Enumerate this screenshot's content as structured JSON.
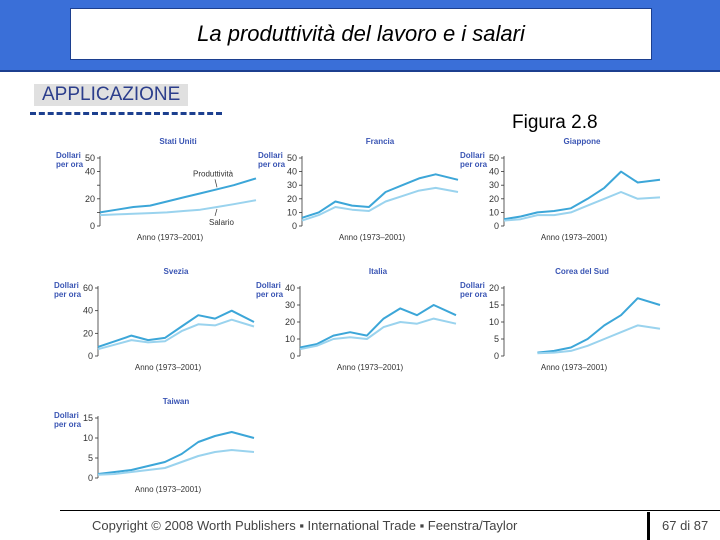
{
  "title": "La produttività del lavoro e i salari",
  "section_label": "APPLICAZIONE",
  "figure_label": "Figura 2.8",
  "colors": {
    "productivity": "#3ca6d8",
    "wages": "#9ad3ee",
    "accent": "#3a6fd8",
    "heading": "#3a55b4"
  },
  "chart_data": [
    {
      "type": "line",
      "title": "Stati Uniti",
      "ylabel": "Dollari per ora",
      "xlabel": "Anno (1973–2001)",
      "ylim": [
        0,
        50
      ],
      "yticks": [
        0,
        10,
        20,
        30,
        40,
        50
      ],
      "ytick_labels": [
        "0",
        "",
        "20",
        "",
        "40",
        "50"
      ],
      "x": [
        1973,
        1976,
        1979,
        1982,
        1985,
        1988,
        1991,
        1994,
        1997,
        2001
      ],
      "annotations": [
        "Produttività",
        "Salario"
      ],
      "series": [
        {
          "name": "Produttività",
          "values": [
            10,
            12,
            14,
            15,
            18,
            21,
            24,
            27,
            30,
            35
          ]
        },
        {
          "name": "Salario",
          "values": [
            8,
            8.5,
            9,
            9.5,
            10,
            11,
            12,
            14,
            16,
            19
          ]
        }
      ]
    },
    {
      "type": "line",
      "title": "Francia",
      "ylabel": "Dollari per ora",
      "xlabel": "Anno (1973–2001)",
      "ylim": [
        0,
        50
      ],
      "yticks": [
        0,
        10,
        20,
        30,
        40,
        50
      ],
      "ytick_labels": [
        "0",
        "10",
        "20",
        "30",
        "40",
        "50"
      ],
      "x": [
        1973,
        1976,
        1979,
        1982,
        1985,
        1988,
        1991,
        1994,
        1997,
        2001
      ],
      "series": [
        {
          "name": "Produttività",
          "values": [
            6,
            10,
            18,
            15,
            14,
            25,
            30,
            35,
            38,
            34
          ]
        },
        {
          "name": "Salario",
          "values": [
            4,
            8,
            14,
            12,
            11,
            18,
            22,
            26,
            28,
            25
          ]
        }
      ]
    },
    {
      "type": "line",
      "title": "Giappone",
      "ylabel": "Dollari per ora",
      "xlabel": "Anno (1973–2001)",
      "ylim": [
        0,
        50
      ],
      "yticks": [
        0,
        10,
        20,
        30,
        40,
        50
      ],
      "ytick_labels": [
        "0",
        "10",
        "20",
        "30",
        "40",
        "50"
      ],
      "x": [
        1973,
        1976,
        1979,
        1982,
        1985,
        1988,
        1991,
        1994,
        1997,
        2001
      ],
      "series": [
        {
          "name": "Produttività",
          "values": [
            5,
            7,
            10,
            11,
            13,
            20,
            28,
            40,
            32,
            34
          ]
        },
        {
          "name": "Salario",
          "values": [
            4,
            5,
            8,
            8,
            10,
            15,
            20,
            25,
            20,
            21
          ]
        }
      ]
    },
    {
      "type": "line",
      "title": "Svezia",
      "ylabel": "Dollari per ora",
      "xlabel": "Anno (1973–2001)",
      "ylim": [
        0,
        60
      ],
      "yticks": [
        0,
        20,
        40,
        60
      ],
      "ytick_labels": [
        "0",
        "20",
        "40",
        "60"
      ],
      "x": [
        1973,
        1976,
        1979,
        1982,
        1985,
        1988,
        1991,
        1994,
        1997,
        2001
      ],
      "series": [
        {
          "name": "Produttività",
          "values": [
            8,
            13,
            18,
            14,
            16,
            26,
            36,
            33,
            40,
            30
          ]
        },
        {
          "name": "Salario",
          "values": [
            6,
            10,
            14,
            12,
            13,
            22,
            28,
            27,
            32,
            26
          ]
        }
      ]
    },
    {
      "type": "line",
      "title": "Italia",
      "ylabel": "Dollari per ora",
      "xlabel": "Anno (1973–2001)",
      "ylim": [
        0,
        40
      ],
      "yticks": [
        0,
        10,
        20,
        30,
        40
      ],
      "ytick_labels": [
        "0",
        "10",
        "20",
        "30",
        "40"
      ],
      "x": [
        1973,
        1976,
        1979,
        1982,
        1985,
        1988,
        1991,
        1994,
        1997,
        2001
      ],
      "series": [
        {
          "name": "Produttività",
          "values": [
            5,
            7,
            12,
            14,
            12,
            22,
            28,
            24,
            30,
            24
          ]
        },
        {
          "name": "Salario",
          "values": [
            4,
            6,
            10,
            11,
            10,
            17,
            20,
            19,
            22,
            19
          ]
        }
      ]
    },
    {
      "type": "line",
      "title": "Corea del Sud",
      "ylabel": "Dollari per ora",
      "xlabel": "Anno (1973–2001)",
      "ylim": [
        0,
        20
      ],
      "yticks": [
        0,
        5,
        10,
        15,
        20
      ],
      "ytick_labels": [
        "0",
        "5",
        "10",
        "15",
        "20"
      ],
      "x": [
        1973,
        1976,
        1979,
        1982,
        1985,
        1988,
        1991,
        1994,
        1997,
        2001
      ],
      "series": [
        {
          "name": "Produttività",
          "values": [
            null,
            null,
            1,
            1.5,
            2.5,
            5,
            9,
            12,
            17,
            15
          ]
        },
        {
          "name": "Salario",
          "values": [
            null,
            null,
            0.8,
            1,
            1.5,
            3,
            5,
            7,
            9,
            8
          ]
        }
      ]
    },
    {
      "type": "line",
      "title": "Taiwan",
      "ylabel": "Dollari per ora",
      "xlabel": "Anno (1973–2001)",
      "ylim": [
        0,
        15
      ],
      "yticks": [
        0,
        5,
        10,
        15
      ],
      "ytick_labels": [
        "0",
        "5",
        "10",
        "15"
      ],
      "x": [
        1973,
        1976,
        1979,
        1982,
        1985,
        1988,
        1991,
        1994,
        1997,
        2001
      ],
      "series": [
        {
          "name": "Produttività",
          "values": [
            1,
            1.5,
            2,
            3,
            4,
            6,
            9,
            10.5,
            11.5,
            10
          ]
        },
        {
          "name": "Salario",
          "values": [
            0.8,
            1,
            1.5,
            2,
            2.5,
            4,
            5.5,
            6.5,
            7,
            6.5
          ]
        }
      ]
    }
  ],
  "footer": {
    "copyright": "Copyright © 2008 Worth Publishers ▪ International Trade ▪ Feenstra/Taylor",
    "page": "67 di 87"
  }
}
